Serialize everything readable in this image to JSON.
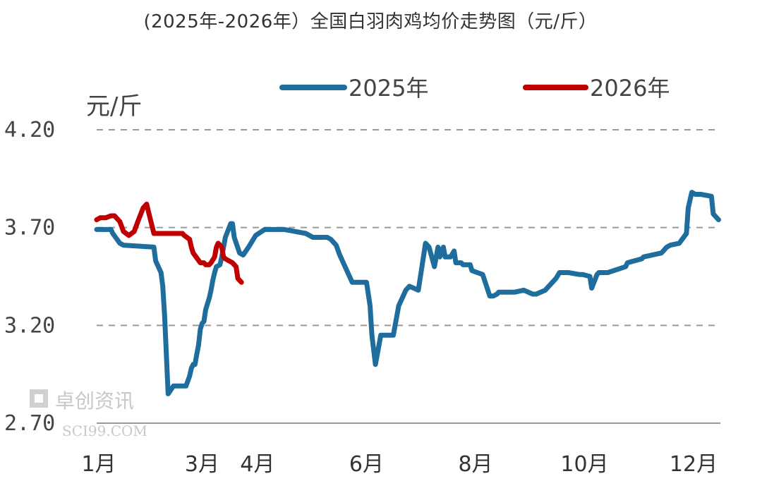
{
  "title": "(2025年-2026年）全国白羽肉鸡均价走势图（元/斤）",
  "watermark": {
    "name_cn": "卓创资讯",
    "site": "SCI99.COM"
  },
  "chart_data": {
    "type": "line",
    "title": "(2025年-2026年）全国白羽肉鸡均价走势图（元/斤）",
    "ylabel": "元/斤",
    "xlabel": "",
    "ylim": [
      2.7,
      4.2
    ],
    "yticks": [
      2.7,
      3.2,
      3.7,
      4.2
    ],
    "ytick_labels": [
      "2.70",
      "3.20",
      "3.70",
      "4.20"
    ],
    "x_axis_unit": "day_of_year",
    "xticks": [
      {
        "label": "1月",
        "value": 1
      },
      {
        "label": "3月",
        "value": 60
      },
      {
        "label": "4月",
        "value": 91
      },
      {
        "label": "6月",
        "value": 152
      },
      {
        "label": "8月",
        "value": 213
      },
      {
        "label": "10月",
        "value": 274
      },
      {
        "label": "12月",
        "value": 335
      }
    ],
    "grid": "horizontal dashed",
    "legend_position": "top",
    "series": [
      {
        "name": "2025年",
        "color": "#1f6d9c",
        "x": [
          1,
          9,
          10,
          14,
          16,
          33,
          34,
          37,
          38,
          39,
          40,
          41,
          44,
          51,
          53,
          54,
          55,
          56,
          57,
          58,
          59,
          60,
          61,
          62,
          64,
          65,
          66,
          67,
          68,
          70,
          71,
          73,
          76,
          77,
          78,
          81,
          83,
          86,
          90,
          95,
          99,
          106,
          112,
          118,
          122,
          126,
          128,
          130,
          132,
          135,
          137,
          144,
          146,
          150,
          152,
          154,
          155,
          157,
          160,
          167,
          170,
          174,
          176,
          181,
          185,
          187,
          190,
          192,
          193,
          195,
          196,
          199,
          201,
          202,
          205,
          206,
          208,
          210,
          211,
          214,
          217,
          221,
          223,
          225,
          226,
          231,
          235,
          240,
          245,
          247,
          252,
          258,
          260,
          265,
          271,
          273,
          277,
          278,
          281,
          282,
          283,
          284,
          287,
          297,
          298,
          302,
          306,
          307,
          317,
          320,
          322,
          327,
          331,
          332,
          334,
          336,
          339,
          345,
          346,
          348,
          349
        ],
        "values": [
          3.69,
          3.69,
          3.67,
          3.62,
          3.61,
          3.6,
          3.53,
          3.47,
          3.4,
          3.25,
          3.05,
          2.85,
          2.89,
          2.89,
          2.94,
          2.98,
          3.0,
          3.0,
          3.05,
          3.1,
          3.18,
          3.21,
          3.22,
          3.28,
          3.34,
          3.38,
          3.43,
          3.47,
          3.5,
          3.51,
          3.55,
          3.65,
          3.72,
          3.72,
          3.65,
          3.57,
          3.56,
          3.6,
          3.66,
          3.69,
          3.69,
          3.69,
          3.68,
          3.67,
          3.65,
          3.65,
          3.65,
          3.65,
          3.64,
          3.61,
          3.56,
          3.42,
          3.42,
          3.42,
          3.42,
          3.3,
          3.15,
          3.0,
          3.15,
          3.15,
          3.3,
          3.38,
          3.4,
          3.38,
          3.62,
          3.6,
          3.5,
          3.6,
          3.55,
          3.6,
          3.55,
          3.55,
          3.58,
          3.52,
          3.52,
          3.51,
          3.51,
          3.51,
          3.48,
          3.47,
          3.46,
          3.35,
          3.35,
          3.36,
          3.37,
          3.37,
          3.37,
          3.38,
          3.36,
          3.36,
          3.38,
          3.44,
          3.47,
          3.47,
          3.46,
          3.46,
          3.45,
          3.39,
          3.46,
          3.47,
          3.47,
          3.47,
          3.47,
          3.5,
          3.52,
          3.53,
          3.54,
          3.55,
          3.57,
          3.6,
          3.61,
          3.62,
          3.67,
          3.8,
          3.88,
          3.87,
          3.87,
          3.86,
          3.77,
          3.75,
          3.74
        ]
      },
      {
        "name": "2026年",
        "color": "#c00000",
        "x": [
          1,
          3,
          6,
          9,
          11,
          14,
          16,
          19,
          22,
          24,
          27,
          29,
          30,
          33,
          49,
          50,
          53,
          54,
          55,
          59,
          61,
          62,
          64,
          65,
          67,
          68,
          69,
          71,
          72,
          73,
          77,
          79,
          80,
          82
        ],
        "values": [
          3.74,
          3.75,
          3.75,
          3.76,
          3.76,
          3.73,
          3.68,
          3.66,
          3.68,
          3.73,
          3.8,
          3.82,
          3.78,
          3.67,
          3.67,
          3.66,
          3.64,
          3.6,
          3.57,
          3.52,
          3.52,
          3.51,
          3.51,
          3.52,
          3.55,
          3.6,
          3.62,
          3.6,
          3.55,
          3.54,
          3.52,
          3.5,
          3.44,
          3.42
        ]
      }
    ]
  }
}
